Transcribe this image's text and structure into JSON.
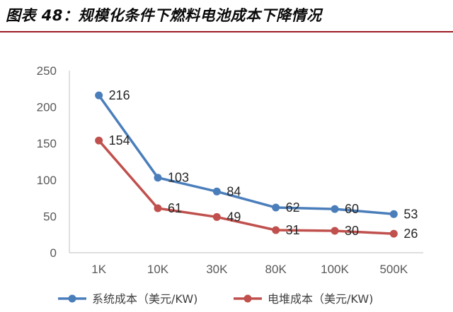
{
  "title": "图表 48：规模化条件下燃料电池成本下降情况",
  "chart_data": {
    "type": "line",
    "categories": [
      "1K",
      "10K",
      "30K",
      "80K",
      "100K",
      "500K"
    ],
    "series": [
      {
        "name": "系统成本（美元/KW)",
        "values": [
          216,
          103,
          84,
          62,
          60,
          53
        ],
        "color": "#4a7ebb"
      },
      {
        "name": "电堆成本（美元/KW)",
        "values": [
          154,
          61,
          49,
          31,
          30,
          26
        ],
        "color": "#c0504d"
      }
    ],
    "ylim": [
      0,
      250
    ],
    "yticks": [
      0,
      50,
      100,
      150,
      200,
      250
    ],
    "grid": false,
    "legend": "bottom"
  }
}
